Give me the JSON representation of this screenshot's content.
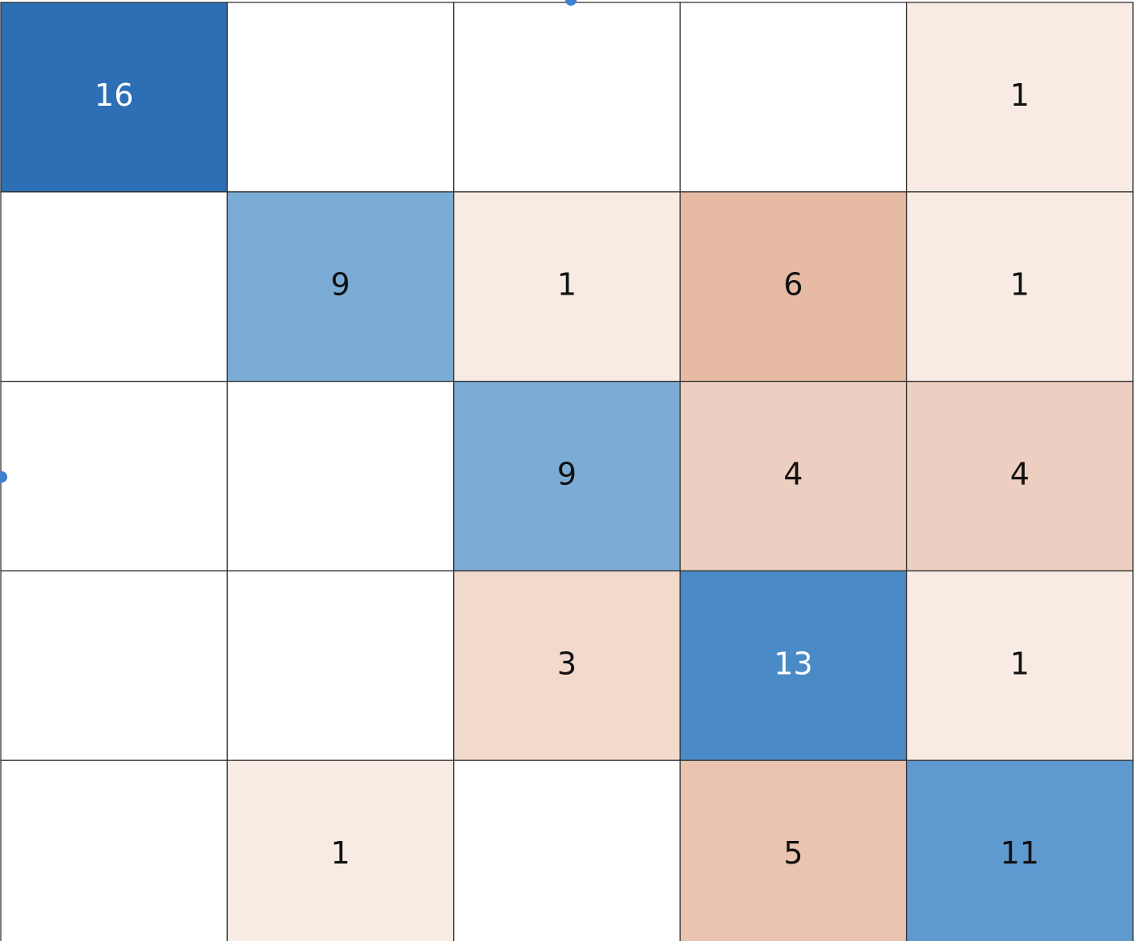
{
  "chart_data": {
    "type": "heatmap",
    "values": [
      [
        16,
        null,
        null,
        null,
        1
      ],
      [
        null,
        9,
        1,
        6,
        1
      ],
      [
        null,
        null,
        9,
        4,
        4
      ],
      [
        null,
        null,
        3,
        13,
        1
      ],
      [
        null,
        1,
        null,
        5,
        11
      ]
    ],
    "colors": [
      [
        "#2c6fb5",
        "#ffffff",
        "#ffffff",
        "#ffffff",
        "#f8ebe3"
      ],
      [
        "#ffffff",
        "#7bacd5",
        "#f8ebe3",
        "#e7baa4",
        "#f8ebe3"
      ],
      [
        "#ffffff",
        "#ffffff",
        "#7bacd5",
        "#eccfc0",
        "#eccfc0"
      ],
      [
        "#ffffff",
        "#ffffff",
        "#f1d9cc",
        "#4a8ac6",
        "#f8ebe3"
      ],
      [
        "#ffffff",
        "#f8ebe3",
        "#ffffff",
        "#eac4b1",
        "#5e9acf"
      ]
    ]
  }
}
